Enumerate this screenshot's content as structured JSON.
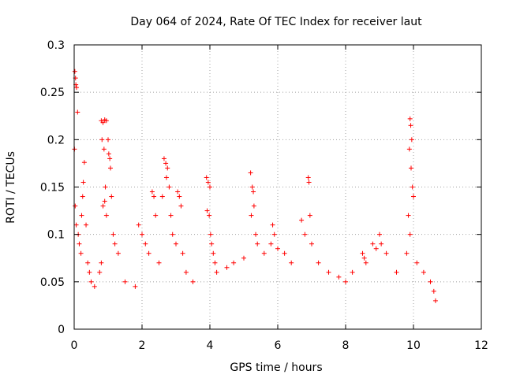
{
  "chart_data": {
    "type": "scatter",
    "title": "Day 064 of 2024, Rate Of TEC Index for receiver laut",
    "xlabel": "GPS time / hours",
    "ylabel": "ROTI / TECUs",
    "xlim": [
      0,
      12
    ],
    "ylim": [
      0,
      0.3
    ],
    "xticks": [
      0,
      2,
      4,
      6,
      8,
      10,
      12
    ],
    "yticks": [
      0,
      0.05,
      0.1,
      0.15,
      0.2,
      0.25,
      0.3
    ],
    "xtick_labels": [
      "0",
      "2",
      "4",
      "6",
      "8",
      "10",
      "12"
    ],
    "ytick_labels": [
      "0",
      "0.05",
      "0.1",
      "0.15",
      "0.2",
      "0.25",
      "0.3"
    ],
    "grid": true,
    "marker": "+",
    "color": "#ff0000",
    "series": [
      {
        "name": "ROTI",
        "points": [
          [
            0.02,
            0.272
          ],
          [
            0.04,
            0.265
          ],
          [
            0.05,
            0.258
          ],
          [
            0.07,
            0.255
          ],
          [
            0.1,
            0.229
          ],
          [
            0.01,
            0.19
          ],
          [
            0.03,
            0.13
          ],
          [
            0.06,
            0.11
          ],
          [
            0.12,
            0.1
          ],
          [
            0.15,
            0.09
          ],
          [
            0.2,
            0.08
          ],
          [
            0.22,
            0.12
          ],
          [
            0.25,
            0.14
          ],
          [
            0.3,
            0.176
          ],
          [
            0.27,
            0.155
          ],
          [
            0.35,
            0.11
          ],
          [
            0.4,
            0.07
          ],
          [
            0.45,
            0.06
          ],
          [
            0.5,
            0.05
          ],
          [
            0.6,
            0.045
          ],
          [
            0.8,
            0.22
          ],
          [
            0.85,
            0.218
          ],
          [
            0.9,
            0.221
          ],
          [
            0.95,
            0.22
          ],
          [
            0.82,
            0.2
          ],
          [
            0.88,
            0.19
          ],
          [
            1.0,
            0.2
          ],
          [
            1.02,
            0.185
          ],
          [
            1.05,
            0.18
          ],
          [
            1.07,
            0.17
          ],
          [
            0.92,
            0.15
          ],
          [
            0.95,
            0.12
          ],
          [
            1.1,
            0.14
          ],
          [
            1.15,
            0.1
          ],
          [
            1.2,
            0.09
          ],
          [
            1.3,
            0.08
          ],
          [
            0.75,
            0.06
          ],
          [
            0.8,
            0.07
          ],
          [
            0.85,
            0.13
          ],
          [
            0.9,
            0.135
          ],
          [
            1.5,
            0.05
          ],
          [
            1.8,
            0.045
          ],
          [
            1.9,
            0.11
          ],
          [
            2.0,
            0.1
          ],
          [
            2.1,
            0.09
          ],
          [
            2.3,
            0.145
          ],
          [
            2.35,
            0.14
          ],
          [
            2.4,
            0.12
          ],
          [
            2.2,
            0.08
          ],
          [
            2.5,
            0.07
          ],
          [
            2.65,
            0.18
          ],
          [
            2.7,
            0.175
          ],
          [
            2.75,
            0.17
          ],
          [
            2.72,
            0.16
          ],
          [
            2.8,
            0.15
          ],
          [
            2.6,
            0.14
          ],
          [
            2.85,
            0.12
          ],
          [
            2.9,
            0.1
          ],
          [
            3.0,
            0.09
          ],
          [
            3.05,
            0.145
          ],
          [
            3.1,
            0.14
          ],
          [
            3.15,
            0.13
          ],
          [
            3.2,
            0.08
          ],
          [
            3.3,
            0.06
          ],
          [
            3.5,
            0.05
          ],
          [
            3.9,
            0.16
          ],
          [
            3.95,
            0.155
          ],
          [
            4.0,
            0.15
          ],
          [
            3.92,
            0.125
          ],
          [
            3.98,
            0.12
          ],
          [
            4.02,
            0.1
          ],
          [
            4.05,
            0.09
          ],
          [
            4.1,
            0.08
          ],
          [
            4.15,
            0.07
          ],
          [
            4.2,
            0.06
          ],
          [
            4.5,
            0.065
          ],
          [
            4.7,
            0.07
          ],
          [
            5.0,
            0.075
          ],
          [
            5.2,
            0.165
          ],
          [
            5.25,
            0.15
          ],
          [
            5.28,
            0.145
          ],
          [
            5.3,
            0.13
          ],
          [
            5.22,
            0.12
          ],
          [
            5.35,
            0.1
          ],
          [
            5.4,
            0.09
          ],
          [
            5.6,
            0.08
          ],
          [
            5.8,
            0.09
          ],
          [
            5.85,
            0.11
          ],
          [
            5.9,
            0.1
          ],
          [
            6.0,
            0.085
          ],
          [
            6.2,
            0.08
          ],
          [
            6.4,
            0.07
          ],
          [
            6.7,
            0.115
          ],
          [
            6.8,
            0.1
          ],
          [
            6.9,
            0.16
          ],
          [
            6.92,
            0.155
          ],
          [
            6.95,
            0.12
          ],
          [
            7.0,
            0.09
          ],
          [
            7.2,
            0.07
          ],
          [
            7.5,
            0.06
          ],
          [
            7.8,
            0.055
          ],
          [
            8.0,
            0.05
          ],
          [
            8.2,
            0.06
          ],
          [
            8.5,
            0.08
          ],
          [
            8.55,
            0.075
          ],
          [
            8.6,
            0.07
          ],
          [
            8.8,
            0.09
          ],
          [
            8.9,
            0.085
          ],
          [
            9.0,
            0.1
          ],
          [
            9.05,
            0.09
          ],
          [
            9.2,
            0.08
          ],
          [
            9.5,
            0.06
          ],
          [
            9.8,
            0.08
          ],
          [
            9.85,
            0.12
          ],
          [
            9.9,
            0.222
          ],
          [
            9.92,
            0.215
          ],
          [
            9.95,
            0.2
          ],
          [
            9.88,
            0.19
          ],
          [
            9.93,
            0.17
          ],
          [
            9.97,
            0.15
          ],
          [
            10.0,
            0.14
          ],
          [
            9.9,
            0.1
          ],
          [
            10.1,
            0.07
          ],
          [
            10.3,
            0.06
          ],
          [
            10.5,
            0.05
          ],
          [
            10.6,
            0.04
          ],
          [
            10.65,
            0.03
          ]
        ]
      }
    ]
  }
}
